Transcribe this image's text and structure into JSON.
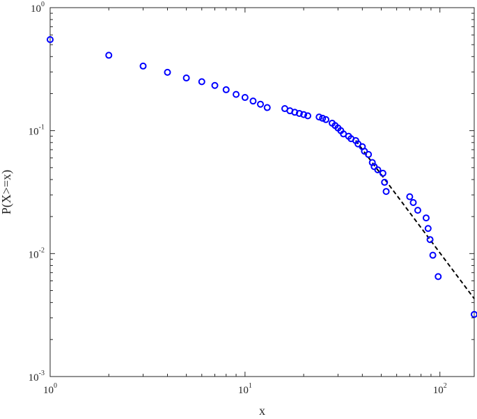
{
  "chart_data": {
    "type": "scatter",
    "title": "",
    "xlabel": "x",
    "ylabel": "P(X>=x)",
    "x_scale": "log",
    "y_scale": "log",
    "xlim": [
      1,
      150
    ],
    "ylim": [
      0.001,
      1
    ],
    "grid": false,
    "legend": "none",
    "x_ticks": [
      {
        "base": "10",
        "exp": "0",
        "value": 1
      },
      {
        "base": "10",
        "exp": "1",
        "value": 10
      },
      {
        "base": "10",
        "exp": "2",
        "value": 100
      }
    ],
    "y_ticks": [
      {
        "base": "10",
        "exp": "-3",
        "value": 0.001
      },
      {
        "base": "10",
        "exp": "-2",
        "value": 0.01
      },
      {
        "base": "10",
        "exp": "-1",
        "value": 0.1
      },
      {
        "base": "10",
        "exp": "0",
        "value": 1
      }
    ],
    "series": [
      {
        "marker": "circle",
        "color": "#0000ff",
        "points": [
          [
            1,
            0.55
          ],
          [
            2,
            0.41
          ],
          [
            3,
            0.335
          ],
          [
            4,
            0.298
          ],
          [
            5,
            0.268
          ],
          [
            6,
            0.25
          ],
          [
            7,
            0.233
          ],
          [
            8,
            0.215
          ],
          [
            9,
            0.197
          ],
          [
            10,
            0.186
          ],
          [
            11,
            0.174
          ],
          [
            12,
            0.164
          ],
          [
            13,
            0.154
          ],
          [
            16,
            0.151
          ],
          [
            17,
            0.145
          ],
          [
            18,
            0.141
          ],
          [
            19,
            0.138
          ],
          [
            20,
            0.135
          ],
          [
            21,
            0.132
          ],
          [
            24,
            0.129
          ],
          [
            25,
            0.126
          ],
          [
            26,
            0.123
          ],
          [
            28,
            0.115
          ],
          [
            29,
            0.11
          ],
          [
            30,
            0.105
          ],
          [
            31,
            0.1
          ],
          [
            32,
            0.094
          ],
          [
            34,
            0.09
          ],
          [
            35,
            0.086
          ],
          [
            37,
            0.083
          ],
          [
            38,
            0.078
          ],
          [
            40,
            0.074
          ],
          [
            41,
            0.068
          ],
          [
            43,
            0.064
          ],
          [
            45,
            0.055
          ],
          [
            46,
            0.051
          ],
          [
            48,
            0.048
          ],
          [
            51,
            0.045
          ],
          [
            52,
            0.038
          ],
          [
            53,
            0.032
          ],
          [
            70,
            0.029
          ],
          [
            73,
            0.026
          ],
          [
            77,
            0.0225
          ],
          [
            85,
            0.0195
          ],
          [
            87,
            0.016
          ],
          [
            89,
            0.013
          ],
          [
            92,
            0.0097
          ],
          [
            98,
            0.0065
          ],
          [
            150,
            0.0032
          ]
        ]
      },
      {
        "line_style": "dashed",
        "color": "#000000",
        "points": [
          [
            37,
            0.083
          ],
          [
            150,
            0.0043
          ]
        ]
      }
    ]
  }
}
